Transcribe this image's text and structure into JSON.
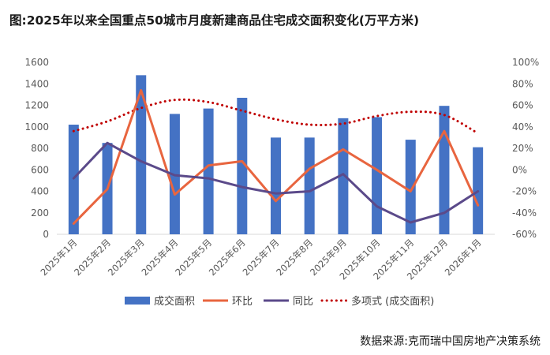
{
  "chart_data": {
    "type": "bar",
    "title": "图:2025年以来全国重点50城市月度新建商品住宅成交面积变化(万平方米)",
    "source": "数据来源:克而瑞中国房地产决策系统",
    "categories": [
      "2025年1月",
      "2025年2月",
      "2025年3月",
      "2025年4月",
      "2025年5月",
      "2025年6月",
      "2025年7月",
      "2025年8月",
      "2025年9月",
      "2025年10月",
      "2025年11月",
      "2025年12月",
      "2026年1月"
    ],
    "y_left": {
      "min": 0,
      "max": 1600,
      "step": 200,
      "ticks": [
        "0",
        "200",
        "400",
        "600",
        "800",
        "1000",
        "1200",
        "1400",
        "1600"
      ]
    },
    "y_right": {
      "min": -60,
      "max": 100,
      "step": 20,
      "ticks": [
        "-60%",
        "-40%",
        "-20%",
        "0%",
        "20%",
        "40%",
        "60%",
        "80%",
        "100%"
      ]
    },
    "grid": false,
    "legend_position": "bottom",
    "series": [
      {
        "name": "成交面积",
        "type": "bar",
        "axis": "left",
        "color": "#4472c4",
        "values": [
          1020,
          850,
          1480,
          1120,
          1170,
          1270,
          900,
          900,
          1080,
          1090,
          880,
          1195,
          810
        ]
      },
      {
        "name": "环比",
        "type": "line",
        "axis": "right",
        "color": "#e8653f",
        "values": [
          -50,
          -18,
          74,
          -23,
          4,
          8,
          -29,
          1,
          19,
          0,
          -20,
          36,
          -33
        ]
      },
      {
        "name": "同比",
        "type": "line",
        "axis": "right",
        "color": "#5b4a8a",
        "values": [
          -8,
          25,
          8,
          -5,
          -8,
          -16,
          -22,
          -20,
          -4,
          -34,
          -49,
          -40,
          -20
        ]
      },
      {
        "name": "多项式 (成交面积)",
        "type": "trend",
        "axis": "left",
        "color": "#c00000",
        "values": [
          960,
          1050,
          1175,
          1250,
          1230,
          1150,
          1070,
          1020,
          1030,
          1100,
          1140,
          1110,
          940
        ]
      }
    ]
  }
}
